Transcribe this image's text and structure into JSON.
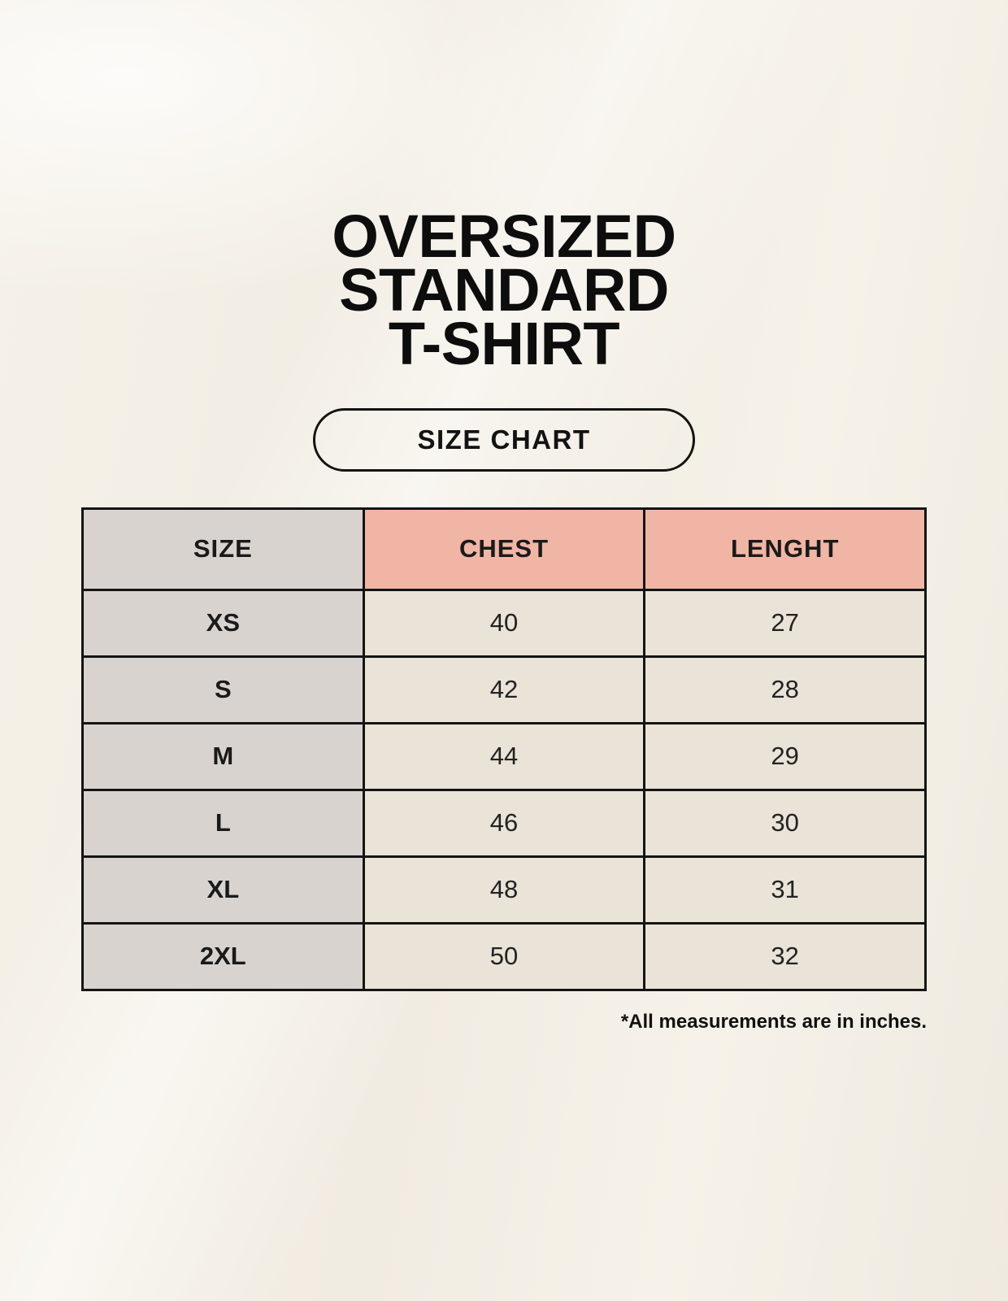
{
  "page": {
    "title_lines": [
      "OVERSIZED",
      "STANDARD",
      "T-SHIRT"
    ],
    "size_chart_label": "SIZE CHART",
    "footnote": "*All measurements are in inches."
  },
  "table": {
    "columns": [
      "SIZE",
      "CHEST",
      "LENGHT"
    ],
    "rows": [
      {
        "size": "XS",
        "chest": "40",
        "length": "27"
      },
      {
        "size": "S",
        "chest": "42",
        "length": "28"
      },
      {
        "size": "M",
        "chest": "44",
        "length": "29"
      },
      {
        "size": "L",
        "chest": "46",
        "length": "30"
      },
      {
        "size": "XL",
        "chest": "48",
        "length": "31"
      },
      {
        "size": "2XL",
        "chest": "50",
        "length": "32"
      }
    ]
  },
  "colors": {
    "background": "#f4f0e7",
    "header_accent": "#f1b5a6",
    "size_column": "#d9d3cf",
    "value_cell": "#e9e3d8",
    "border": "#141414",
    "text": "#151515"
  },
  "chart_data": {
    "type": "table",
    "title": "OVERSIZED STANDARD T-SHIRT",
    "subtitle": "SIZE CHART",
    "columns": [
      "SIZE",
      "CHEST",
      "LENGHT"
    ],
    "rows": [
      [
        "XS",
        40,
        27
      ],
      [
        "S",
        42,
        28
      ],
      [
        "M",
        44,
        29
      ],
      [
        "L",
        46,
        30
      ],
      [
        "XL",
        48,
        31
      ],
      [
        "2XL",
        50,
        32
      ]
    ],
    "note": "*All measurements are in inches.",
    "units": "inches"
  }
}
